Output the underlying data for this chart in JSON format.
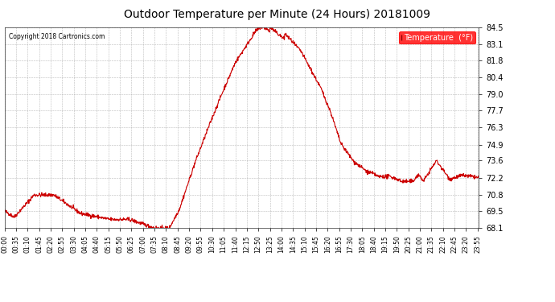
{
  "title": "Outdoor Temperature per Minute (24 Hours) 20181009",
  "copyright": "Copyright 2018 Cartronics.com",
  "legend_label": "Temperature  (°F)",
  "line_color": "#cc0000",
  "background_color": "#ffffff",
  "grid_color": "#aaaaaa",
  "ylim": [
    68.1,
    84.5
  ],
  "yticks": [
    68.1,
    69.5,
    70.8,
    72.2,
    73.6,
    74.9,
    76.3,
    77.7,
    79.0,
    80.4,
    81.8,
    83.1,
    84.5
  ],
  "total_minutes": 1440,
  "tick_step": 35
}
